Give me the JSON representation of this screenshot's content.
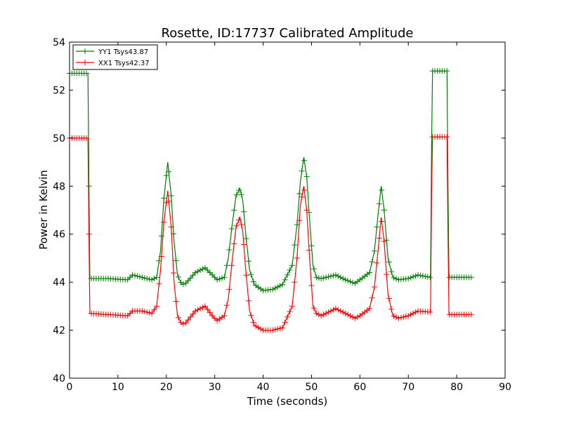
{
  "chart_data": {
    "type": "line",
    "title": "Rosette, ID:17737 Calibrated Amplitude",
    "xlabel": "Time (seconds)",
    "ylabel": "Power in Kelvin",
    "xlim": [
      0,
      90
    ],
    "ylim": [
      40,
      54
    ],
    "x_ticks": [
      0,
      10,
      20,
      30,
      40,
      50,
      60,
      70,
      80,
      90
    ],
    "y_ticks": [
      40,
      42,
      44,
      46,
      48,
      50,
      52,
      54
    ],
    "grid": false,
    "legend_position": "top-left",
    "marker": "+",
    "series": [
      {
        "name": "YY1 Tsys43.87",
        "color": "#008000",
        "x": [
          0,
          3.8,
          4.0,
          4.2,
          8,
          12,
          13,
          15,
          17,
          18,
          18.8,
          19.5,
          20.3,
          21.0,
          21.6,
          22.3,
          23.2,
          24,
          26,
          28,
          29.5,
          30.5,
          32,
          32.8,
          33.6,
          34.4,
          35.2,
          35.8,
          36.4,
          37.2,
          38.2,
          40,
          42,
          44,
          46,
          47,
          47.7,
          48.4,
          49.0,
          49.6,
          50.3,
          51.0,
          52,
          55,
          57,
          59,
          60,
          62,
          63.0,
          63.8,
          64.4,
          65.0,
          65.8,
          66.8,
          68,
          70,
          72,
          74.6,
          74.8,
          75.0,
          78.0,
          78.2,
          78.4,
          83
        ],
        "y": [
          52.7,
          52.7,
          48.0,
          44.15,
          44.15,
          44.1,
          44.3,
          44.2,
          44.1,
          44.2,
          45.3,
          47.5,
          49.0,
          47.6,
          45.7,
          44.3,
          43.9,
          43.95,
          44.4,
          44.6,
          44.3,
          44.1,
          44.2,
          45.0,
          46.4,
          47.6,
          47.9,
          47.4,
          46.0,
          44.5,
          43.9,
          43.65,
          43.7,
          43.9,
          44.7,
          46.4,
          48.2,
          49.2,
          48.4,
          46.6,
          44.7,
          44.2,
          44.15,
          44.3,
          44.1,
          43.95,
          44.1,
          44.4,
          45.3,
          46.9,
          48.0,
          47.0,
          45.0,
          44.2,
          44.1,
          44.15,
          44.3,
          44.2,
          49.5,
          52.8,
          52.8,
          48.0,
          44.2,
          44.2
        ]
      },
      {
        "name": "XX1 Tsys42.37",
        "color": "#ff0000",
        "x": [
          0,
          3.8,
          4.0,
          4.2,
          8,
          12,
          13,
          15,
          17,
          18,
          18.8,
          19.5,
          20.3,
          21.0,
          21.6,
          22.3,
          23.2,
          24,
          26,
          28,
          29.5,
          30.5,
          32,
          32.8,
          33.6,
          34.4,
          35.2,
          35.8,
          36.4,
          37.2,
          38.2,
          40,
          42,
          44,
          46,
          47,
          47.7,
          48.4,
          49.0,
          49.6,
          50.3,
          51.0,
          52,
          55,
          57,
          59,
          60,
          62,
          63.0,
          63.8,
          64.4,
          65.0,
          65.8,
          66.8,
          68,
          70,
          72,
          74.6,
          74.8,
          75.0,
          78.0,
          78.2,
          78.4,
          83
        ],
        "y": [
          50.0,
          50.0,
          46.0,
          42.7,
          42.65,
          42.6,
          42.8,
          42.8,
          42.7,
          43.0,
          44.5,
          46.5,
          47.8,
          46.3,
          44.0,
          42.6,
          42.25,
          42.3,
          42.8,
          43.0,
          42.6,
          42.4,
          42.6,
          43.3,
          44.9,
          46.3,
          46.7,
          46.1,
          44.5,
          42.8,
          42.2,
          42.0,
          42.0,
          42.1,
          43.0,
          45.0,
          47.2,
          48.0,
          47.0,
          45.0,
          43.0,
          42.7,
          42.6,
          42.9,
          42.7,
          42.5,
          42.6,
          42.9,
          43.8,
          45.4,
          46.7,
          45.7,
          43.5,
          42.6,
          42.5,
          42.6,
          42.8,
          42.75,
          47.5,
          50.05,
          50.05,
          46.0,
          42.65,
          42.65
        ]
      }
    ]
  }
}
